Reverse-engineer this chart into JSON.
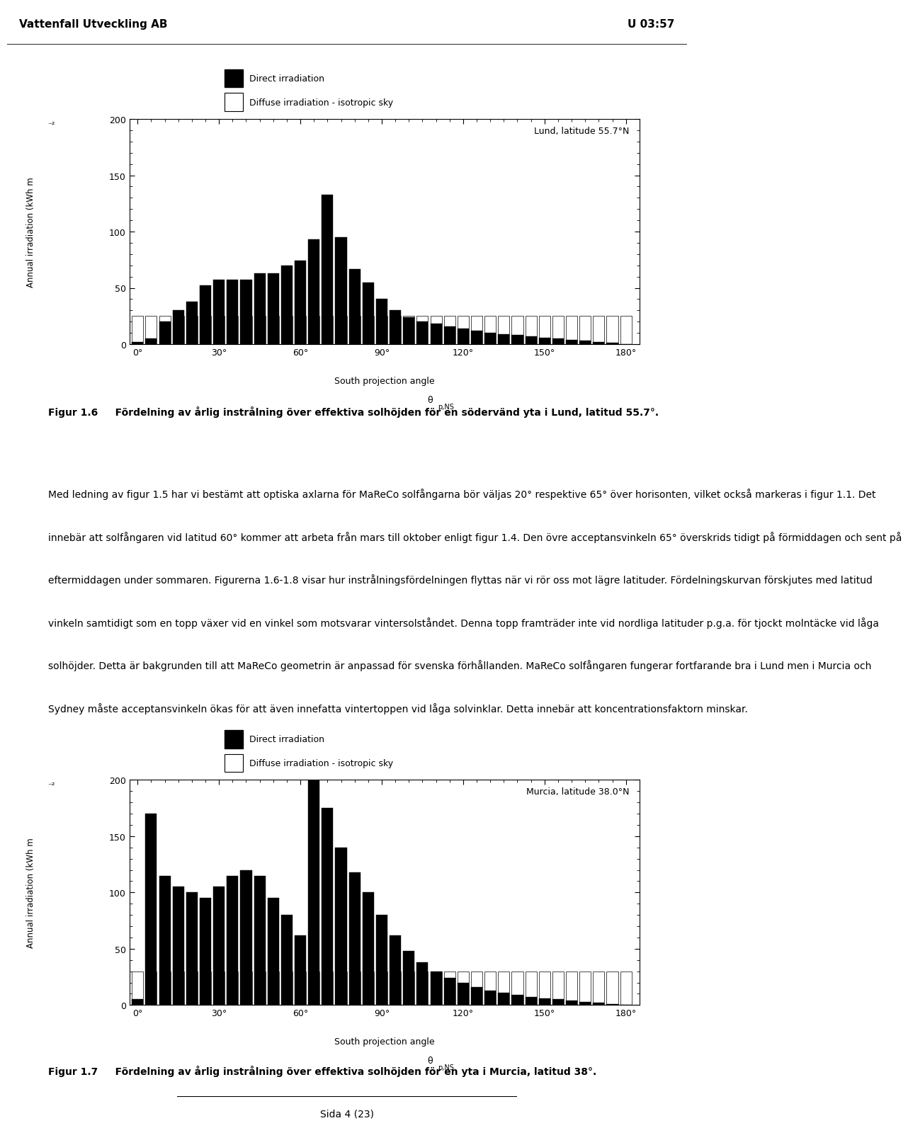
{
  "fig1_title": "Lund, latitude 55.7°N",
  "fig1_caption_num": "Figur 1.6",
  "fig1_caption": "Fördelning av årlig instrålning över effektiva solhöjden för en södervänd yta i Lund, latitud 55.7°.",
  "fig2_title": "Murcia, latitude 38.0°N",
  "fig2_caption_num": "Figur 1.7",
  "fig2_caption": "Fördelning av årlig instrålning över effektiva solhöjden för en yta i Murcia, latitud 38°.",
  "header_left": "Vattenfall Utveckling AB",
  "header_right": "U 03:57",
  "angles": [
    0,
    5,
    10,
    15,
    20,
    25,
    30,
    35,
    40,
    45,
    50,
    55,
    60,
    65,
    70,
    75,
    80,
    85,
    90,
    95,
    100,
    105,
    110,
    115,
    120,
    125,
    130,
    135,
    140,
    145,
    150,
    155,
    160,
    165,
    170,
    175,
    180
  ],
  "lund_direct": [
    2,
    5,
    20,
    30,
    38,
    52,
    57,
    57,
    57,
    63,
    63,
    70,
    74,
    93,
    133,
    95,
    67,
    55,
    40,
    30,
    24,
    20,
    18,
    16,
    14,
    12,
    10,
    9,
    8,
    7,
    6,
    5,
    4,
    3,
    2,
    1,
    0
  ],
  "lund_diffuse": [
    25,
    25,
    25,
    25,
    25,
    25,
    25,
    25,
    25,
    25,
    25,
    25,
    25,
    25,
    25,
    25,
    25,
    25,
    25,
    25,
    25,
    25,
    25,
    25,
    25,
    25,
    25,
    25,
    25,
    25,
    25,
    25,
    25,
    25,
    25,
    25,
    25
  ],
  "murcia_direct": [
    5,
    170,
    115,
    105,
    100,
    95,
    105,
    115,
    120,
    115,
    95,
    80,
    62,
    225,
    175,
    140,
    118,
    100,
    80,
    62,
    48,
    38,
    30,
    24,
    20,
    16,
    13,
    11,
    9,
    7,
    6,
    5,
    4,
    3,
    2,
    1,
    0
  ],
  "murcia_diffuse": [
    30,
    30,
    30,
    30,
    30,
    30,
    30,
    30,
    30,
    30,
    30,
    30,
    30,
    30,
    30,
    30,
    30,
    30,
    30,
    30,
    30,
    30,
    30,
    30,
    30,
    30,
    30,
    30,
    30,
    30,
    30,
    30,
    30,
    30,
    30,
    30,
    30
  ],
  "ylabel": "Annual irradiation (kWh m",
  "xlabel": "South projection angle",
  "ylim": [
    0,
    200
  ],
  "yticks": [
    0,
    50,
    100,
    150,
    200
  ],
  "xticks": [
    0,
    30,
    60,
    90,
    120,
    150,
    180
  ],
  "legend_direct": "Direct irradiation",
  "legend_diffuse": "Diffuse irradiation - isotropic sky",
  "page_label": "Sida 4 (23)",
  "body_lines": [
    "Med ledning av figur 1.5 har vi bestämt att optiska axlarna för MaReCo solfångarna bör väljas 20° respektive 65° över horisonten, vilket också markeras i figur 1.1. Det",
    "innebär att solfångaren vid latitud 60° kommer att arbeta från mars till oktober enligt figur 1.4. Den övre acceptansvinkeln 65° överskrids tidigt på förmiddagen och sent på",
    "eftermiddagen under sommaren. Figurerna 1.6-1.8 visar hur instrålningsfördelningen flyttas när vi rör oss mot lägre latituder. Fördelningskurvan förskjutes med latitud",
    "vinkeln samtidigt som en topp växer vid en vinkel som motsvarar vintersolståndet. Denna topp framträder inte vid nordliga latituder p.g.a. för tjockt molntäcke vid låga",
    "solhöjder. Detta är bakgrunden till att MaReCo geometrin är anpassad för svenska förhållanden. MaReCo solfångaren fungerar fortfarande bra i Lund men i Murcia och",
    "Sydney måste acceptansvinkeln ökas för att även innefatta vintertoppen vid låga solvinklar. Detta innebär att koncentrationsfaktorn minskar."
  ]
}
